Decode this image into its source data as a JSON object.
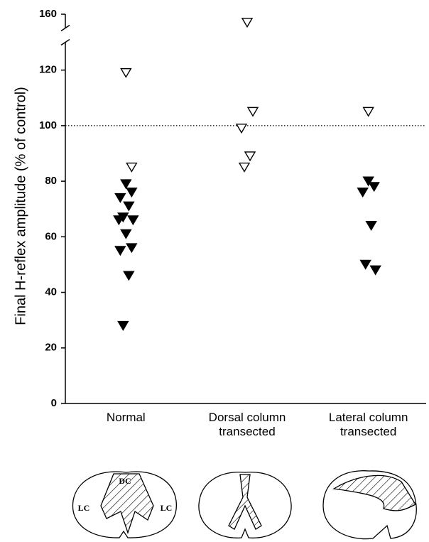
{
  "chart_data": {
    "type": "scatter",
    "ylabel": "Final H-reflex amplitude (% of control)",
    "categories": [
      "Normal",
      "Dorsal column transected",
      "Lateral column transected"
    ],
    "ylim": [
      0,
      160
    ],
    "y_break": [
      130,
      155
    ],
    "yticks": [
      0,
      20,
      40,
      60,
      80,
      100,
      120,
      160
    ],
    "reference_line": 100,
    "series": [
      {
        "marker": "open",
        "color": "#000000",
        "values": [
          [
            119,
            85
          ],
          [
            157,
            105,
            99,
            89,
            85
          ],
          [
            105
          ]
        ]
      },
      {
        "marker": "filled",
        "color": "#000000",
        "values": [
          [
            79,
            76,
            74,
            71,
            67,
            66,
            66,
            61,
            56,
            55,
            46,
            28
          ],
          [],
          [
            80,
            78,
            76,
            64,
            50,
            48
          ]
        ]
      }
    ]
  },
  "diagram_labels": [
    "DC",
    "LC",
    "LC"
  ]
}
